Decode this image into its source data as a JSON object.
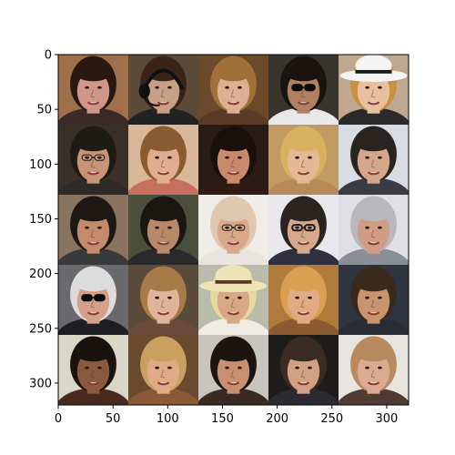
{
  "chart_data": {
    "type": "image-grid",
    "title": "",
    "xlabel": "",
    "ylabel": "",
    "xlim": [
      0,
      320
    ],
    "ylim": [
      320,
      0
    ],
    "x_ticks": [
      0,
      50,
      100,
      150,
      200,
      250,
      300
    ],
    "y_ticks": [
      0,
      50,
      100,
      150,
      200,
      250,
      300
    ],
    "x_tick_labels": [
      "0",
      "50",
      "100",
      "150",
      "200",
      "250",
      "300"
    ],
    "y_tick_labels": [
      "0",
      "50",
      "100",
      "150",
      "200",
      "250",
      "300"
    ],
    "grid": false,
    "rows": 5,
    "cols": 5,
    "cells": [
      {
        "id": "face-r1c1",
        "description": "man, short dark hair, dark shirt",
        "bg": "#a0704a",
        "skin": "#d09688",
        "hair": "#2a1810",
        "shirt": "#3a2a28",
        "accessory": "none"
      },
      {
        "id": "face-r1c2",
        "description": "woman wearing headset",
        "bg": "#5c4a3a",
        "skin": "#c8a088",
        "hair": "#3a2418",
        "shirt": "#222222",
        "accessory": "headset"
      },
      {
        "id": "face-r1c3",
        "description": "smiling woman, long light brown hair",
        "bg": "#6a4a2a",
        "skin": "#dcb092",
        "hair": "#a07038",
        "shirt": "#5a3a28",
        "accessory": "none"
      },
      {
        "id": "face-r1c4",
        "description": "man wearing sunglasses",
        "bg": "#38342e",
        "skin": "#b08062",
        "hair": "#1a1410",
        "shirt": "#e8e8e8",
        "accessory": "sunglasses"
      },
      {
        "id": "face-r1c5",
        "description": "woman wearing white hat",
        "bg": "#c0a890",
        "skin": "#e8c0a0",
        "hair": "#c89040",
        "shirt": "#2a2a2a",
        "accessory": "white-hat"
      },
      {
        "id": "face-r2c1",
        "description": "older man with glasses",
        "bg": "#3a3028",
        "skin": "#c89478",
        "hair": "#1e1a16",
        "shirt": "#2e2a28",
        "accessory": "glasses"
      },
      {
        "id": "face-r2c2",
        "description": "smiling woman, light brown hair",
        "bg": "#d8b898",
        "skin": "#e0ae8e",
        "hair": "#8a5a30",
        "shirt": "#c87060",
        "accessory": "none"
      },
      {
        "id": "face-r2c3",
        "description": "woman with dark hair",
        "bg": "#2a1c14",
        "skin": "#c88a6a",
        "hair": "#1a100a",
        "shirt": "#301a14",
        "accessory": "none"
      },
      {
        "id": "face-r2c4",
        "description": "smiling blonde woman",
        "bg": "#c09a60",
        "skin": "#e4b894",
        "hair": "#d8b060",
        "shirt": "#b88a58",
        "accessory": "none"
      },
      {
        "id": "face-r2c5",
        "description": "man with short dark hair",
        "bg": "#d8dce4",
        "skin": "#d4a68a",
        "hair": "#2a2420",
        "shirt": "#3a3c44",
        "accessory": "none"
      },
      {
        "id": "face-r3c1",
        "description": "smiling man, short dark hair",
        "bg": "#8a7460",
        "skin": "#c48a6c",
        "hair": "#1e1814",
        "shirt": "#3a3a3a",
        "accessory": "none"
      },
      {
        "id": "face-r3c2",
        "description": "smiling man with stubble",
        "bg": "#4a4e3a",
        "skin": "#b8886a",
        "hair": "#1a1612",
        "shirt": "#2a2a2a",
        "accessory": "none"
      },
      {
        "id": "face-r3c3",
        "description": "bald man with glasses",
        "bg": "#f0ece8",
        "skin": "#d8a88a",
        "hair": "#e0c8b0",
        "shirt": "#e8e4e0",
        "accessory": "glasses"
      },
      {
        "id": "face-r3c4",
        "description": "man with dark-rimmed glasses",
        "bg": "#e8e8ec",
        "skin": "#d6a88c",
        "hair": "#2a2420",
        "shirt": "#303040",
        "accessory": "dark-glasses"
      },
      {
        "id": "face-r3c5",
        "description": "older man with grey hair",
        "bg": "#e0e0e4",
        "skin": "#d09c86",
        "hair": "#b8b8bc",
        "shirt": "#8a8e96",
        "accessory": "none"
      },
      {
        "id": "face-r4c1",
        "description": "older man, white hair, sunglasses",
        "bg": "#6a6a6e",
        "skin": "#d4a08a",
        "hair": "#dcdcdc",
        "shirt": "#1e1e20",
        "accessory": "sunglasses"
      },
      {
        "id": "face-r4c2",
        "description": "woman with long light brown hair",
        "bg": "#5a4a3a",
        "skin": "#e0b49a",
        "hair": "#a87a48",
        "shirt": "#6a4a38",
        "accessory": "none"
      },
      {
        "id": "face-r4c3",
        "description": "man wearing straw hat",
        "bg": "#b8bca8",
        "skin": "#d8a886",
        "hair": "#e8d8a0",
        "shirt": "#f0ece4",
        "accessory": "straw-hat"
      },
      {
        "id": "face-r4c4",
        "description": "smiling blonde woman",
        "bg": "#b07a3a",
        "skin": "#e0aa84",
        "hair": "#d8a050",
        "shirt": "#8a5a30",
        "accessory": "none"
      },
      {
        "id": "face-r4c5",
        "description": "man with short brown hair",
        "bg": "#2e3440",
        "skin": "#c8946e",
        "hair": "#3a2a1e",
        "shirt": "#2a2c34",
        "accessory": "none"
      },
      {
        "id": "face-r5c1",
        "description": "woman with dark curly hair",
        "bg": "#d8d8c8",
        "skin": "#8a5a3e",
        "hair": "#1a120c",
        "shirt": "#4a2a1e",
        "accessory": "none"
      },
      {
        "id": "face-r5c2",
        "description": "woman with wavy blonde hair",
        "bg": "#6a4a2e",
        "skin": "#e0aa84",
        "hair": "#c8a060",
        "shirt": "#8a5a38",
        "accessory": "none"
      },
      {
        "id": "face-r5c3",
        "description": "woman with dark hair",
        "bg": "#c8c4c0",
        "skin": "#c89070",
        "hair": "#1c140e",
        "shirt": "#3a2a24",
        "accessory": "none"
      },
      {
        "id": "face-r5c4",
        "description": "smiling man in suit",
        "bg": "#1e1c1a",
        "skin": "#d4a084",
        "hair": "#3a2c22",
        "shirt": "#2a2a30",
        "accessory": "none"
      },
      {
        "id": "face-r5c5",
        "description": "older woman, curly light hair",
        "bg": "#e8e4e0",
        "skin": "#dcaa90",
        "hair": "#b88a60",
        "shirt": "#503a34",
        "accessory": "none"
      }
    ]
  }
}
